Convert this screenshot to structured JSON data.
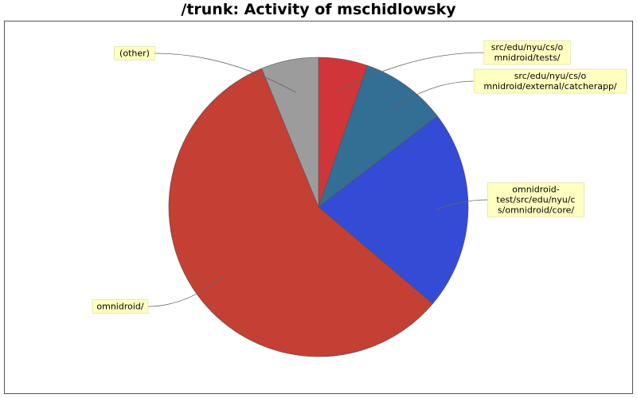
{
  "chart_data": {
    "type": "pie",
    "title": "/trunk: Activity of mschidlowsky",
    "start_angle_deg": 90,
    "direction": "clockwise",
    "slices": [
      {
        "label": [
          "src/edu/nyu/cs/o",
          "mnidroid/tests/"
        ],
        "value": 5.3,
        "color": "#d03539"
      },
      {
        "label": [
          "src/edu/nyu/cs/o",
          "mnidroid/external/catcherapp/"
        ],
        "value": 9.3,
        "color": "#336e94"
      },
      {
        "label": [
          "omnidroid-",
          "test/src/edu/nyu/c",
          "s/omnidroid/core/"
        ],
        "value": 21.6,
        "color": "#344bd6"
      },
      {
        "label": [
          "omnidroid/"
        ],
        "value": 57.6,
        "color": "#c43f34"
      },
      {
        "label": [
          "(other)"
        ],
        "value": 6.2,
        "color": "#9c9c9c"
      }
    ],
    "legend": "none"
  }
}
